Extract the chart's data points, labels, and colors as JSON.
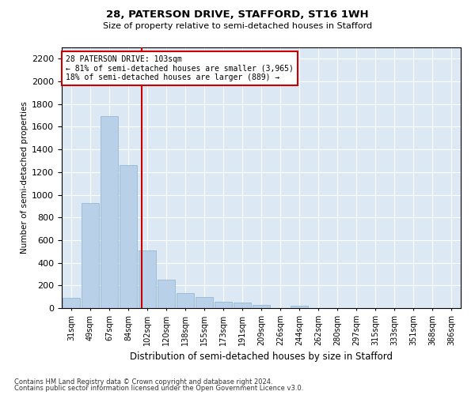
{
  "title1": "28, PATERSON DRIVE, STAFFORD, ST16 1WH",
  "title2": "Size of property relative to semi-detached houses in Stafford",
  "xlabel": "Distribution of semi-detached houses by size in Stafford",
  "ylabel": "Number of semi-detached properties",
  "footer1": "Contains HM Land Registry data © Crown copyright and database right 2024.",
  "footer2": "Contains public sector information licensed under the Open Government Licence v3.0.",
  "annotation_title": "28 PATERSON DRIVE: 103sqm",
  "annotation_line2": "← 81% of semi-detached houses are smaller (3,965)",
  "annotation_line3": "18% of semi-detached houses are larger (889) →",
  "bar_color": "#b8d0e8",
  "bar_edge_color": "#8ab0d0",
  "vline_color": "#cc0000",
  "annotation_box_color": "#cc0000",
  "background_color": "#dce9f5",
  "categories": [
    "31sqm",
    "49sqm",
    "67sqm",
    "84sqm",
    "102sqm",
    "120sqm",
    "138sqm",
    "155sqm",
    "173sqm",
    "191sqm",
    "209sqm",
    "226sqm",
    "244sqm",
    "262sqm",
    "280sqm",
    "297sqm",
    "315sqm",
    "333sqm",
    "351sqm",
    "368sqm",
    "386sqm"
  ],
  "values": [
    93,
    930,
    1693,
    1260,
    510,
    250,
    130,
    100,
    55,
    50,
    30,
    0,
    22,
    0,
    0,
    0,
    0,
    0,
    0,
    0,
    0
  ],
  "ylim": [
    0,
    2300
  ],
  "yticks": [
    0,
    200,
    400,
    600,
    800,
    1000,
    1200,
    1400,
    1600,
    1800,
    2000,
    2200
  ],
  "vline_x_index": 3.72
}
